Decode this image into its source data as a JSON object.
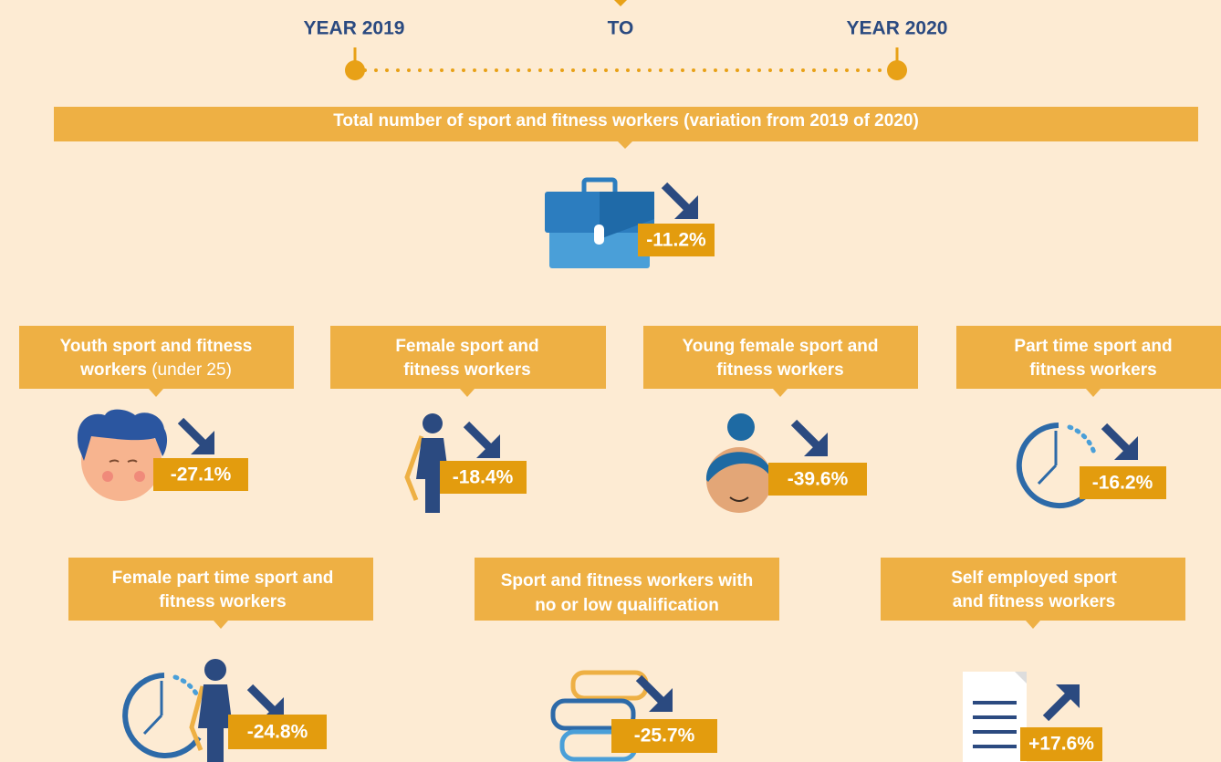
{
  "timeline": {
    "start": "YEAR 2019",
    "middle": "TO",
    "end": "YEAR 2020"
  },
  "main": {
    "title": "Total number of sport and fitness workers (variation from 2019 of 2020)",
    "value": "-11.2%"
  },
  "items": [
    {
      "lines": [
        "Youth sport and fitness",
        "workers"
      ],
      "note": "(under 25)",
      "value": "-27.1%"
    },
    {
      "lines": [
        "Female sport and",
        "fitness workers"
      ],
      "value": "-18.4%"
    },
    {
      "lines": [
        "Young female sport and",
        "fitness workers"
      ],
      "value": "-39.6%"
    },
    {
      "lines": [
        "Part time sport and",
        "fitness workers"
      ],
      "value": "-16.2%"
    },
    {
      "lines": [
        "Female part time sport and",
        "fitness workers"
      ],
      "value": "-24.8%"
    },
    {
      "lines": [
        "Sport and fitness workers with",
        "no or low qualification"
      ],
      "value": "-25.7%"
    },
    {
      "lines": [
        "Self employed sport",
        "and fitness workers"
      ],
      "value": "+17.6%"
    }
  ]
}
